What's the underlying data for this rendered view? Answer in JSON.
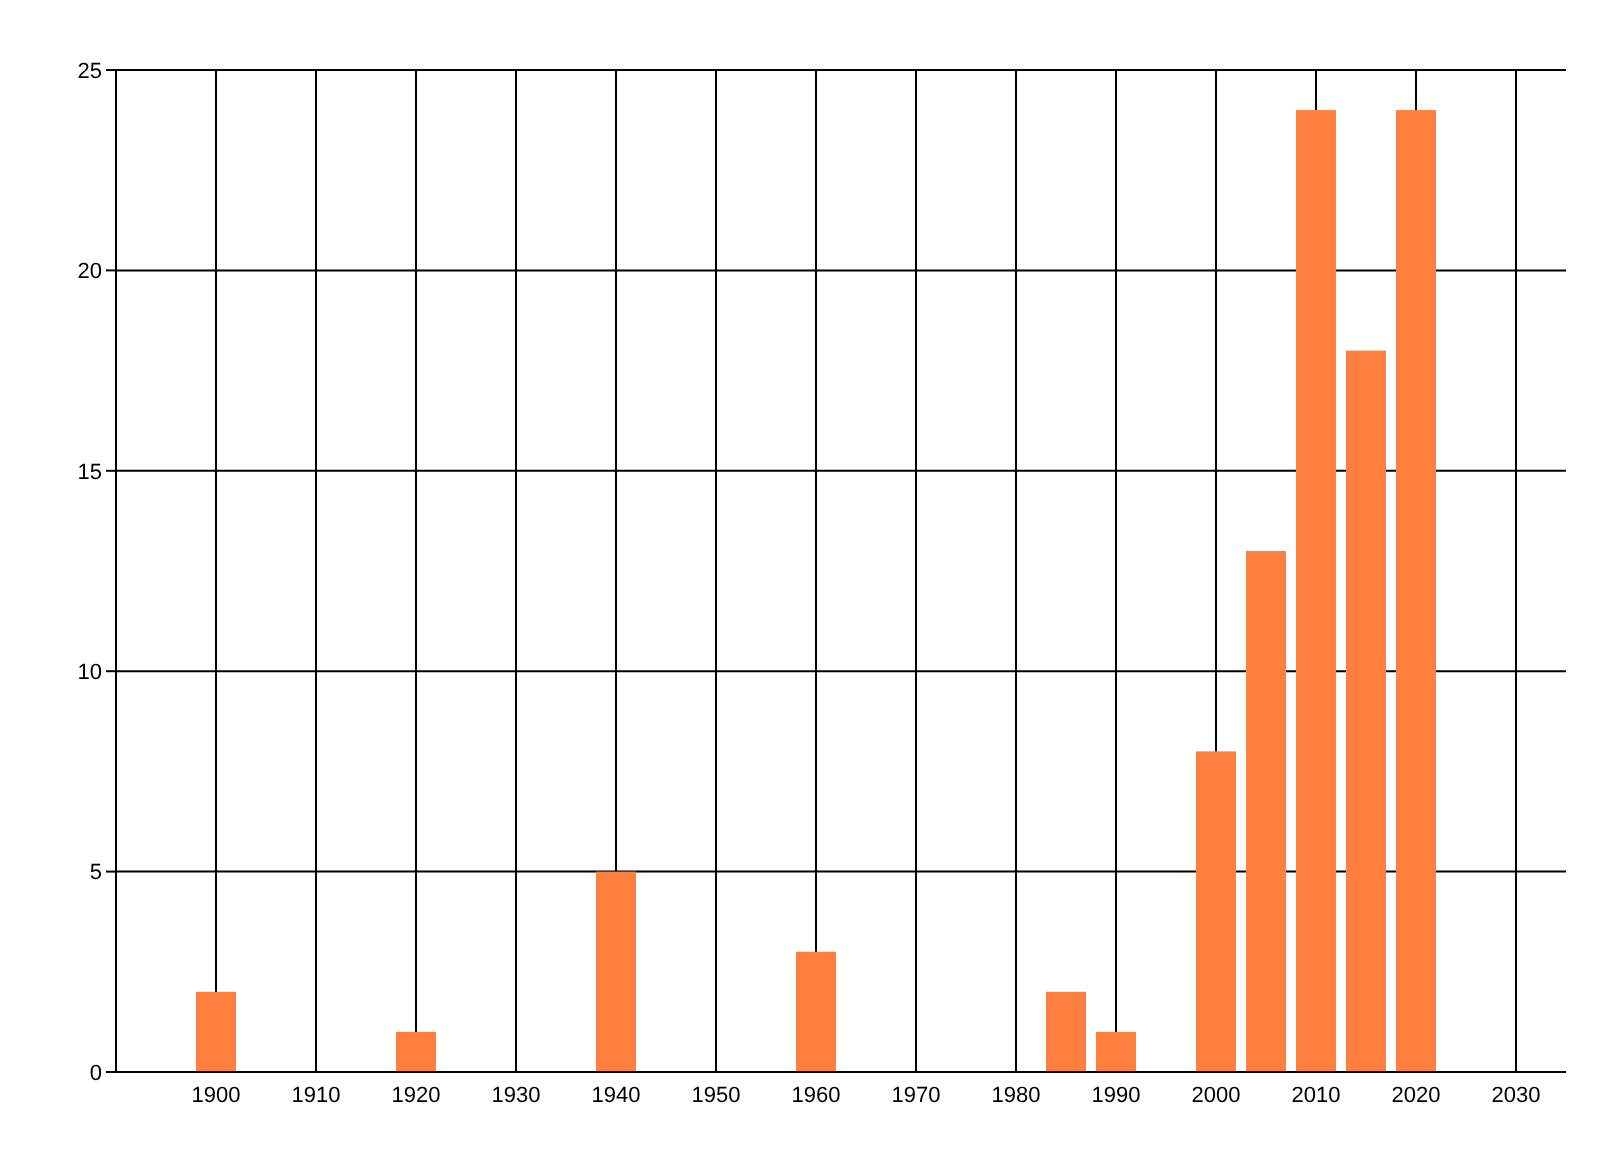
{
  "chart_data": {
    "type": "bar",
    "x": [
      1900,
      1920,
      1940,
      1960,
      1985,
      1990,
      2000,
      2005,
      2010,
      2015,
      2020
    ],
    "values": [
      2,
      1,
      5,
      3,
      2,
      1,
      8,
      13,
      24,
      18,
      24
    ],
    "color": "#ff7f3f",
    "xlim": [
      1890,
      2035
    ],
    "xticks": [
      1900,
      1910,
      1920,
      1930,
      1940,
      1950,
      1960,
      1970,
      1980,
      1990,
      2000,
      2010,
      2020,
      2030
    ],
    "ylim": [
      0,
      25
    ],
    "yticks": [
      0,
      5,
      10,
      15,
      20,
      25
    ],
    "grid": true
  }
}
